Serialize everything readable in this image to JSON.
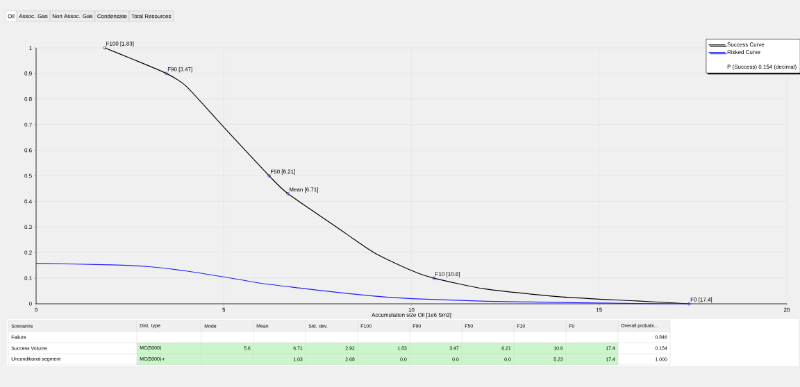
{
  "chart_data": {
    "type": "line",
    "xlabel": "Accumulation size Oil [1e6 Sm3]",
    "xlim": [
      0,
      20
    ],
    "ylim": [
      0,
      1
    ],
    "xticks": [
      0,
      5,
      10,
      15,
      20
    ],
    "yticks": [
      0,
      0.1,
      0.2,
      0.3,
      0.4,
      0.5,
      0.6,
      0.7,
      0.8,
      0.9,
      1
    ],
    "grid": true,
    "legend": "top right",
    "series": [
      {
        "name": "Success Curve",
        "color": "#000000",
        "x": [
          1.83,
          2.5,
          3.47,
          4,
          5,
          6.21,
          6.71,
          8,
          9,
          10,
          10.6,
          12,
          14,
          16,
          17.4
        ],
        "values": [
          1,
          0.96,
          0.9,
          0.85,
          0.69,
          0.5,
          0.43,
          0.3,
          0.2,
          0.13,
          0.1,
          0.057,
          0.027,
          0.011,
          0
        ]
      },
      {
        "name": "Risked Curve",
        "color": "#2020ff",
        "x": [
          0,
          2,
          3,
          4,
          5,
          6,
          7,
          8,
          9,
          10,
          12,
          14,
          16,
          17.4
        ],
        "values": [
          0.158,
          0.152,
          0.145,
          0.128,
          0.105,
          0.08,
          0.062,
          0.045,
          0.03,
          0.02,
          0.01,
          0.005,
          0.001,
          0
        ]
      },
      {
        "type": "scatter",
        "marker": "circle",
        "color": "#4040c0",
        "x": [
          1.83,
          3.47,
          6.21,
          6.71,
          10.6,
          17.4
        ],
        "values": [
          1,
          0.9,
          0.5,
          0.43,
          0.1,
          0
        ]
      }
    ],
    "annotations": [
      "Oil",
      "Assoc. Gas",
      "Non Assoc. Gas",
      "Condensate",
      "Total Resources",
      "P (Success) 0.154 (decimal)",
      {
        "text": "F100 [1.83]",
        "x": 1.83,
        "y": 1
      },
      {
        "text": "F90 [3.47]",
        "x": 3.47,
        "y": 0.9
      },
      {
        "text": "F50 [6.21]",
        "x": 6.21,
        "y": 0.5
      },
      {
        "text": "Mean [6.71]",
        "x": 6.71,
        "y": 0.43
      },
      {
        "text": "F10 [10.6]",
        "x": 10.6,
        "y": 0.1
      },
      {
        "text": "F0 [17.4]",
        "x": 17.4,
        "y": 0
      },
      "Scenarios",
      "Dist. type",
      "Mode",
      "Mean",
      "Std. dev.",
      "F100",
      "F90",
      "F50",
      "F10",
      "F0",
      "Overall probabi...",
      "Failure",
      "0.846",
      "Success Volume",
      "MC(5000)",
      "5.6",
      "6.71",
      "2.92",
      "1.83",
      "3.47",
      "6.21",
      "10.6",
      "17.4",
      "0.154",
      "Unconditional segment",
      "MC(5000)-r",
      "1.03",
      "2.68",
      "0.0",
      "0.0",
      "0.0",
      "5.23",
      "17.4",
      "1.000"
    ]
  }
}
